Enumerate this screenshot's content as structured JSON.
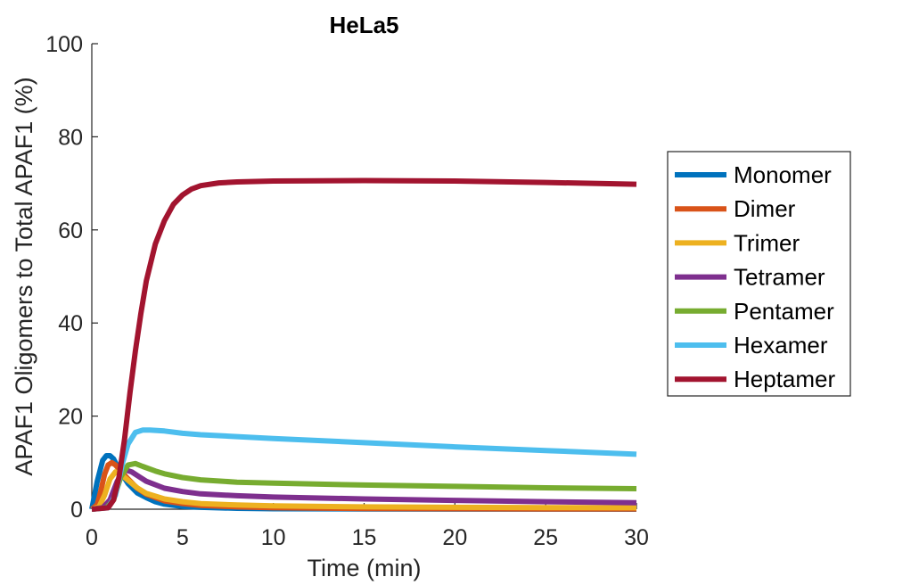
{
  "chart_data": {
    "type": "line",
    "title": "HeLa5",
    "xlabel": "Time (min)",
    "ylabel": "APAF1 Oligomers to Total APAF1 (%)",
    "xlim": [
      0,
      30
    ],
    "ylim": [
      0,
      100
    ],
    "xticks": [
      0,
      5,
      10,
      15,
      20,
      25,
      30
    ],
    "yticks": [
      0,
      20,
      40,
      60,
      80,
      100
    ],
    "grid": false,
    "legend_position": "right",
    "series": [
      {
        "name": "Monomer",
        "color": "#0072BD",
        "x": [
          0,
          0.3,
          0.6,
          0.8,
          1.0,
          1.2,
          1.5,
          2.0,
          2.5,
          3.0,
          3.5,
          4,
          5,
          6,
          8,
          10,
          15,
          20,
          25,
          30
        ],
        "y": [
          0,
          6,
          10.5,
          11.5,
          11.5,
          10.8,
          8.5,
          5.5,
          3.5,
          2.5,
          1.6,
          1.1,
          0.6,
          0.4,
          0.2,
          0.1,
          0.05,
          0.02,
          0.01,
          0
        ]
      },
      {
        "name": "Dimer",
        "color": "#D95319",
        "x": [
          0,
          0.3,
          0.5,
          0.7,
          0.9,
          1.1,
          1.3,
          1.6,
          2.0,
          2.5,
          3.0,
          4,
          5,
          6,
          8,
          10,
          15,
          20,
          25,
          30
        ],
        "y": [
          0,
          1,
          4,
          7.5,
          9.5,
          10,
          9.5,
          8.2,
          6.5,
          4.5,
          3.2,
          1.8,
          1.2,
          0.8,
          0.5,
          0.3,
          0.15,
          0.1,
          0.05,
          0.03
        ]
      },
      {
        "name": "Trimer",
        "color": "#EDB120",
        "x": [
          0,
          0.4,
          0.7,
          1.0,
          1.3,
          1.6,
          2.0,
          2.5,
          3.0,
          4,
          5,
          6,
          8,
          10,
          15,
          20,
          25,
          30
        ],
        "y": [
          0,
          0.5,
          3,
          6.5,
          8,
          7.5,
          6.2,
          4.6,
          3.4,
          2.2,
          1.6,
          1.2,
          0.9,
          0.7,
          0.5,
          0.4,
          0.35,
          0.3
        ]
      },
      {
        "name": "Tetramer",
        "color": "#7E2F8E",
        "x": [
          0,
          0.6,
          1.0,
          1.4,
          1.8,
          2.2,
          2.6,
          3.0,
          4,
          5,
          6,
          8,
          10,
          15,
          20,
          25,
          30
        ],
        "y": [
          0,
          0.3,
          2,
          6,
          8.5,
          8,
          7,
          6,
          4.5,
          3.8,
          3.3,
          2.9,
          2.6,
          2.2,
          1.9,
          1.6,
          1.4
        ]
      },
      {
        "name": "Pentamer",
        "color": "#77AC30",
        "x": [
          0,
          0.8,
          1.2,
          1.6,
          2.0,
          2.4,
          2.8,
          3.5,
          4,
          5,
          6,
          8,
          10,
          15,
          20,
          25,
          30
        ],
        "y": [
          0,
          0.3,
          2,
          7,
          9.5,
          9.8,
          9.2,
          8.2,
          7.6,
          6.8,
          6.3,
          5.8,
          5.6,
          5.2,
          4.9,
          4.6,
          4.4
        ]
      },
      {
        "name": "Hexamer",
        "color": "#4DBEEE",
        "x": [
          0,
          0.9,
          1.3,
          1.7,
          2.0,
          2.4,
          2.8,
          3.2,
          4,
          5,
          6,
          8,
          10,
          15,
          20,
          25,
          30
        ],
        "y": [
          0,
          0.3,
          3,
          10,
          14,
          16.5,
          17,
          17,
          16.8,
          16.3,
          16,
          15.6,
          15.2,
          14.3,
          13.4,
          12.6,
          11.8
        ]
      },
      {
        "name": "Heptamer",
        "color": "#A2142F",
        "x": [
          0,
          0.9,
          1.2,
          1.5,
          1.8,
          2.1,
          2.4,
          2.7,
          3.0,
          3.5,
          4,
          4.5,
          5,
          5.5,
          6,
          7,
          8,
          10,
          15,
          20,
          25,
          30
        ],
        "y": [
          0,
          0.3,
          2,
          7,
          15,
          25,
          34,
          42,
          49,
          57,
          62,
          65.5,
          67.5,
          68.8,
          69.5,
          70.1,
          70.3,
          70.5,
          70.6,
          70.5,
          70.2,
          69.8
        ]
      }
    ]
  }
}
